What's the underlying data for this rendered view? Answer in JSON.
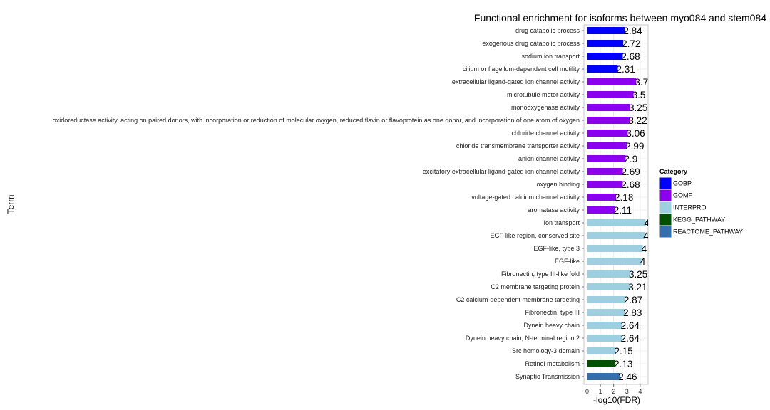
{
  "chart_data": {
    "type": "bar",
    "orientation": "horizontal",
    "title": "Functional enrichment for isoforms between myo084 and stem084",
    "xlabel": "-log10(FDR)",
    "ylabel": "Term",
    "xlim": [
      0,
      4.6
    ],
    "xticks": [
      "0",
      "1",
      "2",
      "3",
      "4"
    ],
    "grid": true,
    "legend_position": "right",
    "legend": {
      "title": "Category",
      "items": [
        {
          "name": "GOBP",
          "color": "#0000ff"
        },
        {
          "name": "GOMF",
          "color": "#8b00ee"
        },
        {
          "name": "INTERPRO",
          "color": "#9ecfe1"
        },
        {
          "name": "KEGG_PATHWAY",
          "color": "#005000"
        },
        {
          "name": "REACTOME_PATHWAY",
          "color": "#336eae"
        }
      ]
    },
    "bars": [
      {
        "term": "drug catabolic process",
        "value": 2.84,
        "label": "2.84",
        "category": "GOBP"
      },
      {
        "term": "exogenous drug catabolic process",
        "value": 2.72,
        "label": "2.72",
        "category": "GOBP"
      },
      {
        "term": "sodium ion transport",
        "value": 2.68,
        "label": "2.68",
        "category": "GOBP"
      },
      {
        "term": "cilium or flagellum-dependent cell motility",
        "value": 2.31,
        "label": "2.31",
        "category": "GOBP"
      },
      {
        "term": "extracellular ligand-gated ion channel activity",
        "value": 3.7,
        "label": "3.7",
        "category": "GOMF"
      },
      {
        "term": "microtubule motor activity",
        "value": 3.5,
        "label": "3.5",
        "category": "GOMF"
      },
      {
        "term": "monooxygenase activity",
        "value": 3.25,
        "label": "3.25",
        "category": "GOMF"
      },
      {
        "term": "oxidoreductase activity, acting on paired donors, with incorporation or reduction of molecular oxygen, reduced flavin or flavoprotein as one donor, and incorporation of one atom of oxygen",
        "value": 3.22,
        "label": "3.22",
        "category": "GOMF"
      },
      {
        "term": "chloride channel activity",
        "value": 3.06,
        "label": "3.06",
        "category": "GOMF"
      },
      {
        "term": "chloride transmembrane transporter activity",
        "value": 2.99,
        "label": "2.99",
        "category": "GOMF"
      },
      {
        "term": "anion channel activity",
        "value": 2.9,
        "label": "2.9",
        "category": "GOMF"
      },
      {
        "term": "excitatory extracellular ligand-gated ion channel activity",
        "value": 2.69,
        "label": "2.69",
        "category": "GOMF"
      },
      {
        "term": "oxygen binding",
        "value": 2.68,
        "label": "2.68",
        "category": "GOMF"
      },
      {
        "term": "voltage-gated calcium channel activity",
        "value": 2.18,
        "label": "2.18",
        "category": "GOMF"
      },
      {
        "term": "aromatase activity",
        "value": 2.11,
        "label": "2.11",
        "category": "GOMF"
      },
      {
        "term": "Ion transport",
        "value": 4.4,
        "label": "4",
        "category": "INTERPRO"
      },
      {
        "term": "EGF-like region, conserved site",
        "value": 4.35,
        "label": "4",
        "category": "INTERPRO"
      },
      {
        "term": "EGF-like, type 3",
        "value": 4.2,
        "label": "4",
        "category": "INTERPRO"
      },
      {
        "term": "EGF-like",
        "value": 4.1,
        "label": "4",
        "category": "INTERPRO"
      },
      {
        "term": "Fibronectin, type III-like fold",
        "value": 3.25,
        "label": "3.25",
        "category": "INTERPRO"
      },
      {
        "term": "C2 membrane targeting protein",
        "value": 3.21,
        "label": "3.21",
        "category": "INTERPRO"
      },
      {
        "term": "C2 calcium-dependent membrane targeting",
        "value": 2.87,
        "label": "2.87",
        "category": "INTERPRO"
      },
      {
        "term": "Fibronectin, type III",
        "value": 2.83,
        "label": "2.83",
        "category": "INTERPRO"
      },
      {
        "term": "Dynein heavy chain",
        "value": 2.64,
        "label": "2.64",
        "category": "INTERPRO"
      },
      {
        "term": "Dynein heavy chain, N-terminal region 2",
        "value": 2.64,
        "label": "2.64",
        "category": "INTERPRO"
      },
      {
        "term": "Src homology-3 domain",
        "value": 2.15,
        "label": "2.15",
        "category": "INTERPRO"
      },
      {
        "term": "Retinol metabolism",
        "value": 2.13,
        "label": "2.13",
        "category": "KEGG_PATHWAY"
      },
      {
        "term": "Synaptic Transmission",
        "value": 2.46,
        "label": "2.46",
        "category": "REACTOME_PATHWAY"
      }
    ]
  }
}
